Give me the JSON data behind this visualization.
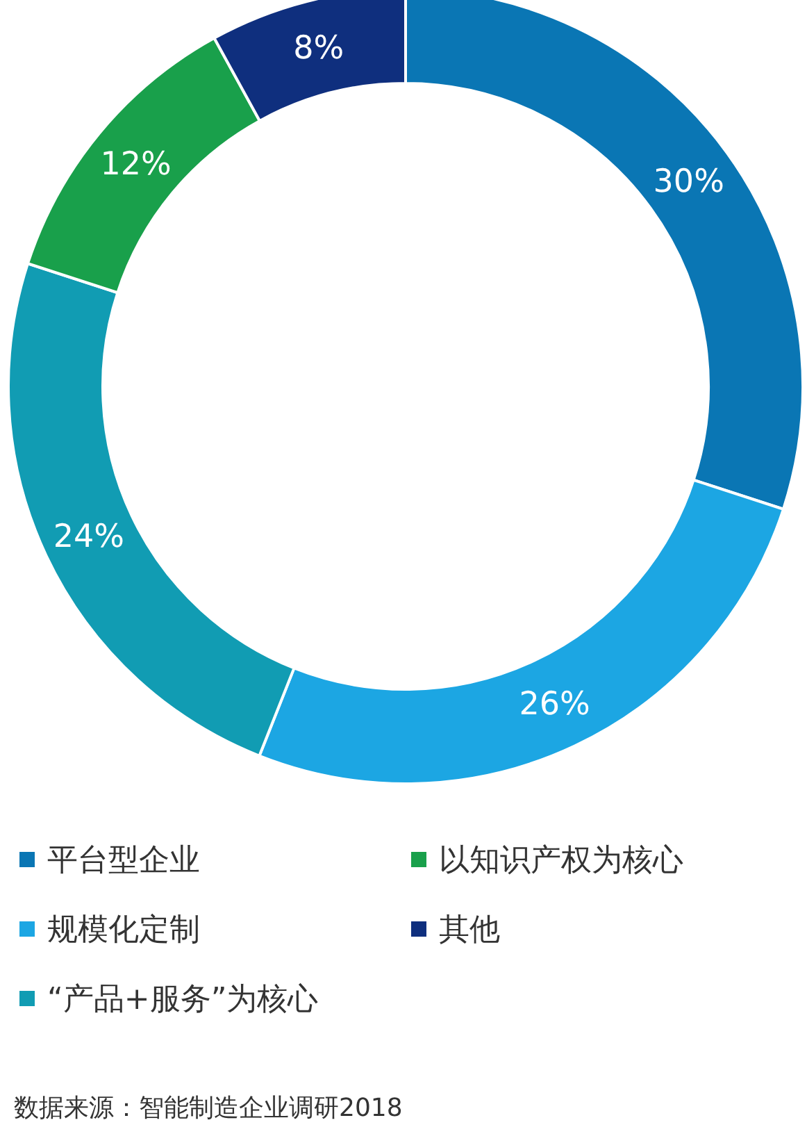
{
  "chart_data": {
    "type": "donut",
    "categories": [
      "平台型企业",
      "规模化定制",
      "“产品+服务”为核心",
      "以知识产权为核心",
      "其他"
    ],
    "values": [
      30,
      26,
      24,
      12,
      8
    ],
    "colors": [
      "#0a76b4",
      "#1ca6e3",
      "#119cb3",
      "#19a04b",
      "#0f2f7e"
    ],
    "value_labels": [
      "30%",
      "26%",
      "24%",
      "12%",
      "8%"
    ],
    "legend": "bottom",
    "annotations": [
      "数据来源：智能制造企业调研2018"
    ]
  }
}
